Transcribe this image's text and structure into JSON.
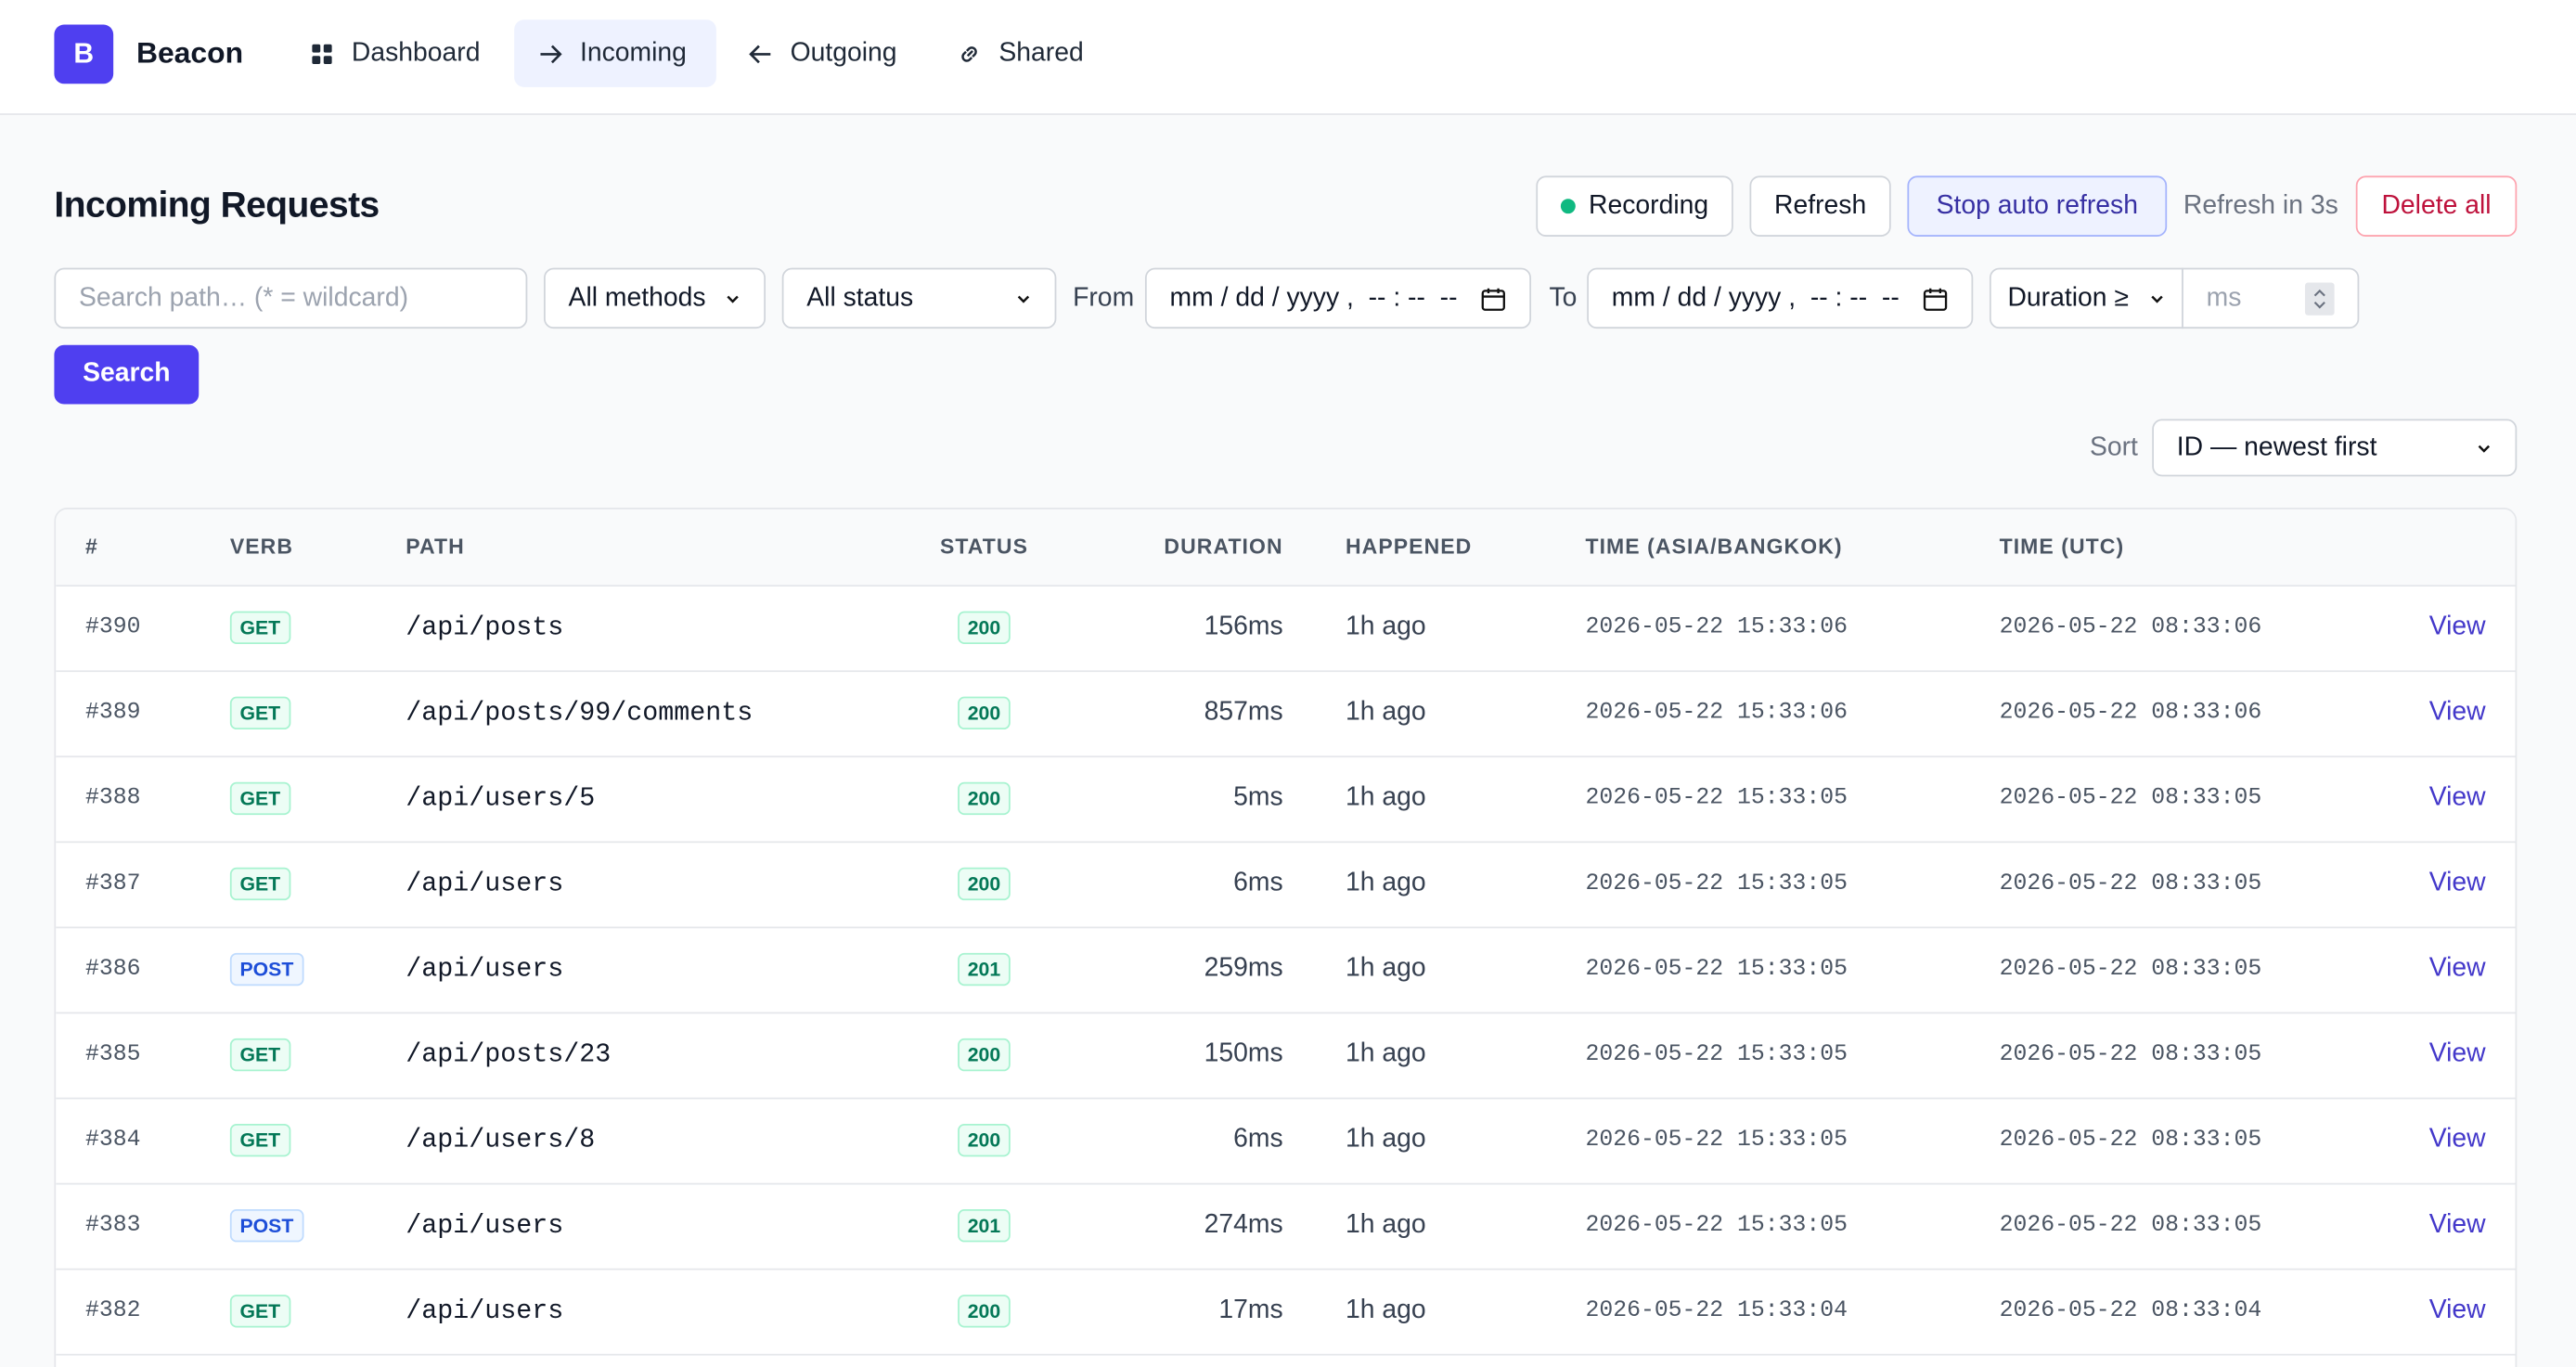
{
  "nav": {
    "logo": "B",
    "brand": "Beacon",
    "items": [
      "Dashboard",
      "Incoming",
      "Outgoing",
      "Shared"
    ]
  },
  "header": {
    "title": "Incoming Requests",
    "recording": "Recording",
    "refresh": "Refresh",
    "stop_auto_refresh": "Stop auto refresh",
    "countdown": "Refresh in 3s",
    "delete_all": "Delete all"
  },
  "filters": {
    "search_placeholder": "Search path… (* = wildcard)",
    "method": "All methods",
    "status": "All status",
    "from_label": "From",
    "from_placeholder": "mm / dd / yyyy ,  -- : --  --",
    "to_label": "To",
    "to_placeholder": "mm / dd / yyyy ,  -- : --  --",
    "duration_op": "Duration ≥",
    "duration_placeholder": "ms",
    "search_button": "Search",
    "sort_label": "Sort",
    "sort": "ID — newest first"
  },
  "table": {
    "columns": [
      "#",
      "VERB",
      "PATH",
      "STATUS",
      "DURATION",
      "HAPPENED",
      "TIME (ASIA/BANGKOK)",
      "TIME (UTC)"
    ],
    "rows": [
      [
        "#390",
        "GET",
        "/api/posts",
        "200",
        "156ms",
        "1h ago",
        "2026-05-22 15:33:06",
        "2026-05-22 08:33:06",
        "View"
      ],
      [
        "#389",
        "GET",
        "/api/posts/99/comments",
        "200",
        "857ms",
        "1h ago",
        "2026-05-22 15:33:06",
        "2026-05-22 08:33:06",
        "View"
      ],
      [
        "#388",
        "GET",
        "/api/users/5",
        "200",
        "5ms",
        "1h ago",
        "2026-05-22 15:33:05",
        "2026-05-22 08:33:05",
        "View"
      ],
      [
        "#387",
        "GET",
        "/api/users",
        "200",
        "6ms",
        "1h ago",
        "2026-05-22 15:33:05",
        "2026-05-22 08:33:05",
        "View"
      ],
      [
        "#386",
        "POST",
        "/api/users",
        "201",
        "259ms",
        "1h ago",
        "2026-05-22 15:33:05",
        "2026-05-22 08:33:05",
        "View"
      ],
      [
        "#385",
        "GET",
        "/api/posts/23",
        "200",
        "150ms",
        "1h ago",
        "2026-05-22 15:33:05",
        "2026-05-22 08:33:05",
        "View"
      ],
      [
        "#384",
        "GET",
        "/api/users/8",
        "200",
        "6ms",
        "1h ago",
        "2026-05-22 15:33:05",
        "2026-05-22 08:33:05",
        "View"
      ],
      [
        "#383",
        "POST",
        "/api/users",
        "201",
        "274ms",
        "1h ago",
        "2026-05-22 15:33:05",
        "2026-05-22 08:33:05",
        "View"
      ],
      [
        "#382",
        "GET",
        "/api/users",
        "200",
        "17ms",
        "1h ago",
        "2026-05-22 15:33:04",
        "2026-05-22 08:33:04",
        "View"
      ]
    ]
  }
}
